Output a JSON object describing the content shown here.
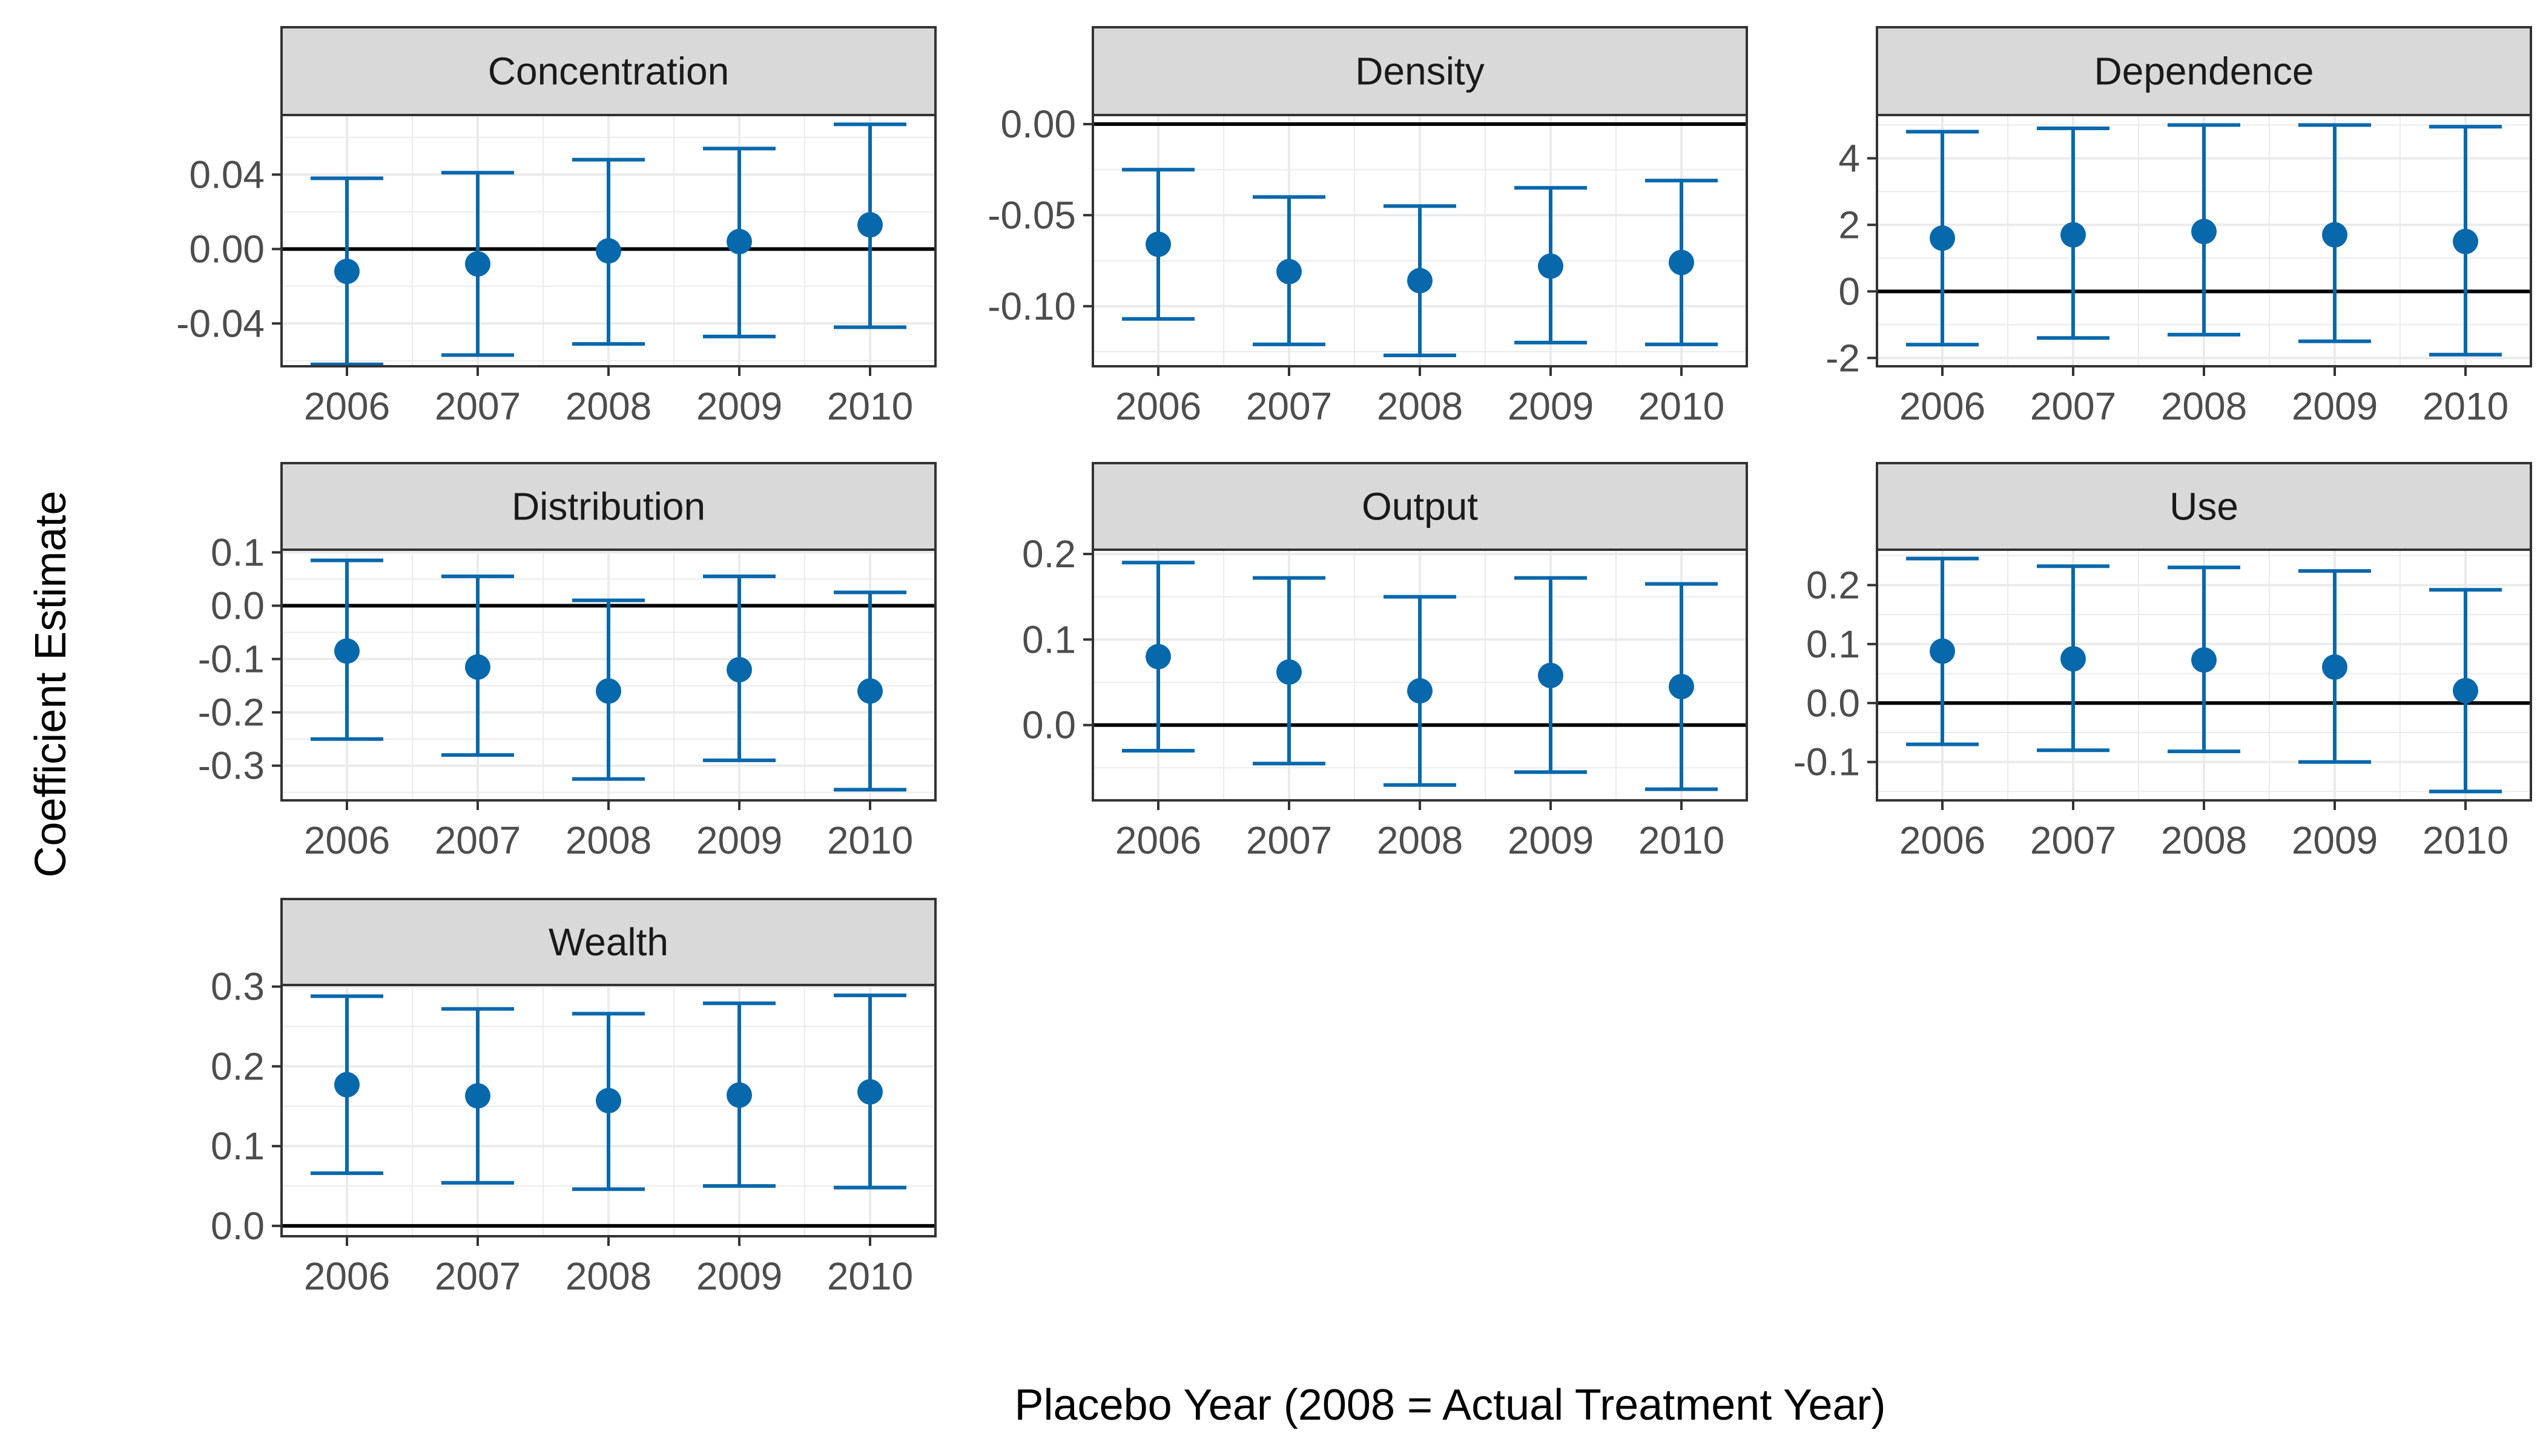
{
  "figure": {
    "xlabel": "Placebo Year (2008 = Actual Treatment Year)",
    "ylabel": "Coefficient Estimate"
  },
  "colors": {
    "point": "#0868ac",
    "strip_fill": "#d9d9d9",
    "grid": "#ebebeb",
    "zero_line": "#000000"
  },
  "chart_data": [
    {
      "type": "errorbar",
      "title": "Concentration",
      "categories": [
        "2006",
        "2007",
        "2008",
        "2009",
        "2010"
      ],
      "values": [
        -0.012,
        -0.008,
        -0.001,
        0.004,
        0.013
      ],
      "lower": [
        -0.062,
        -0.057,
        -0.051,
        -0.047,
        -0.042
      ],
      "upper": [
        0.038,
        0.041,
        0.048,
        0.054,
        0.067
      ],
      "ylim": [
        -0.063,
        0.072
      ],
      "yticks": [
        -0.04,
        0.0,
        0.04
      ],
      "ytick_labels": [
        "-0.04",
        "0.00",
        "0.04"
      ],
      "reference_line": 0
    },
    {
      "type": "errorbar",
      "title": "Density",
      "categories": [
        "2006",
        "2007",
        "2008",
        "2009",
        "2010"
      ],
      "values": [
        -0.066,
        -0.081,
        -0.086,
        -0.078,
        -0.076
      ],
      "lower": [
        -0.107,
        -0.121,
        -0.127,
        -0.12,
        -0.121
      ],
      "upper": [
        -0.025,
        -0.04,
        -0.045,
        -0.035,
        -0.031
      ],
      "ylim": [
        -0.133,
        0.005
      ],
      "yticks": [
        -0.1,
        -0.05,
        0.0
      ],
      "ytick_labels": [
        "-0.10",
        "-0.05",
        "0.00"
      ],
      "reference_line": 0
    },
    {
      "type": "errorbar",
      "title": "Dependence",
      "categories": [
        "2006",
        "2007",
        "2008",
        "2009",
        "2010"
      ],
      "values": [
        1.6,
        1.7,
        1.8,
        1.7,
        1.5
      ],
      "lower": [
        -1.6,
        -1.4,
        -1.3,
        -1.5,
        -1.9
      ],
      "upper": [
        4.8,
        4.9,
        5.0,
        5.0,
        4.95
      ],
      "ylim": [
        -2.25,
        5.3
      ],
      "yticks": [
        -2,
        0,
        2,
        4
      ],
      "ytick_labels": [
        "-2",
        "0",
        "2",
        "4"
      ],
      "reference_line": 0
    },
    {
      "type": "errorbar",
      "title": "Distribution",
      "categories": [
        "2006",
        "2007",
        "2008",
        "2009",
        "2010"
      ],
      "values": [
        -0.085,
        -0.115,
        -0.16,
        -0.12,
        -0.16
      ],
      "lower": [
        -0.25,
        -0.28,
        -0.325,
        -0.29,
        -0.345
      ],
      "upper": [
        0.085,
        0.055,
        0.01,
        0.055,
        0.025
      ],
      "ylim": [
        -0.365,
        0.105
      ],
      "yticks": [
        -0.3,
        -0.2,
        -0.1,
        0.0,
        0.1
      ],
      "ytick_labels": [
        "-0.3",
        "-0.2",
        "-0.1",
        "0.0",
        "0.1"
      ],
      "reference_line": 0
    },
    {
      "type": "errorbar",
      "title": "Output",
      "categories": [
        "2006",
        "2007",
        "2008",
        "2009",
        "2010"
      ],
      "values": [
        0.08,
        0.062,
        0.04,
        0.058,
        0.045
      ],
      "lower": [
        -0.03,
        -0.045,
        -0.07,
        -0.055,
        -0.075
      ],
      "upper": [
        0.19,
        0.172,
        0.15,
        0.172,
        0.165
      ],
      "ylim": [
        -0.088,
        0.205
      ],
      "yticks": [
        0.0,
        0.1,
        0.2
      ],
      "ytick_labels": [
        "0.0",
        "0.1",
        "0.2"
      ],
      "reference_line": 0
    },
    {
      "type": "errorbar",
      "title": "Use",
      "categories": [
        "2006",
        "2007",
        "2008",
        "2009",
        "2010"
      ],
      "values": [
        0.088,
        0.075,
        0.073,
        0.061,
        0.021
      ],
      "lower": [
        -0.07,
        -0.08,
        -0.082,
        -0.1,
        -0.15
      ],
      "upper": [
        0.245,
        0.232,
        0.23,
        0.224,
        0.192
      ],
      "ylim": [
        -0.165,
        0.26
      ],
      "yticks": [
        -0.1,
        0.0,
        0.1,
        0.2
      ],
      "ytick_labels": [
        "-0.1",
        "0.0",
        "0.1",
        "0.2"
      ],
      "reference_line": 0
    },
    {
      "type": "errorbar",
      "title": "Wealth",
      "categories": [
        "2006",
        "2007",
        "2008",
        "2009",
        "2010"
      ],
      "values": [
        0.177,
        0.163,
        0.157,
        0.164,
        0.168
      ],
      "lower": [
        0.066,
        0.054,
        0.046,
        0.05,
        0.048
      ],
      "upper": [
        0.288,
        0.272,
        0.266,
        0.279,
        0.289
      ],
      "ylim": [
        -0.013,
        0.302
      ],
      "yticks": [
        0.0,
        0.1,
        0.2,
        0.3
      ],
      "ytick_labels": [
        "0.0",
        "0.1",
        "0.2",
        "0.3"
      ],
      "reference_line": 0
    }
  ]
}
